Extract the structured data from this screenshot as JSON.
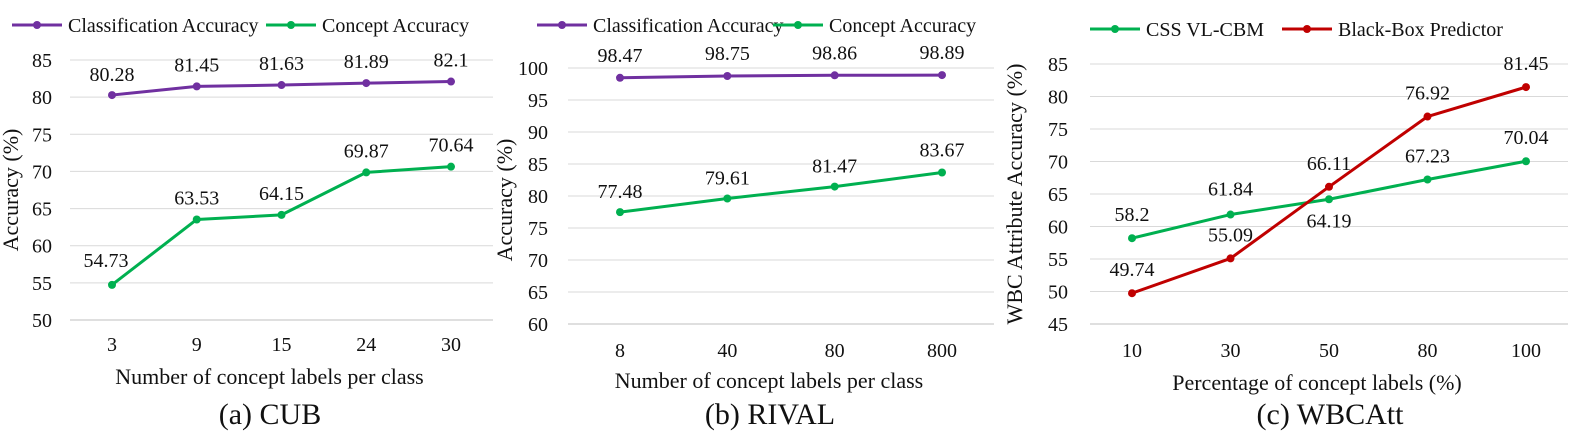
{
  "chart_data": [
    {
      "type": "line",
      "caption": "(a) CUB",
      "xlabel": "Number of concept labels per class",
      "ylabel": "Accuracy (%)",
      "categories": [
        "3",
        "9",
        "15",
        "24",
        "30"
      ],
      "ylim": [
        50,
        85
      ],
      "yticks": [
        50,
        55,
        60,
        65,
        70,
        75,
        80,
        85
      ],
      "grid": true,
      "legend_position": "top",
      "series": [
        {
          "name": "Classification Accuracy",
          "color": "#7030a0",
          "values": [
            80.28,
            81.45,
            81.63,
            81.89,
            82.1
          ],
          "labels": [
            "80.28",
            "81.45",
            "81.63",
            "81.89",
            "82.1"
          ]
        },
        {
          "name": "Concept Accuracy",
          "color": "#00b050",
          "values": [
            54.73,
            63.53,
            64.15,
            69.87,
            70.64
          ],
          "labels": [
            "54.73",
            "63.53",
            "64.15",
            "69.87",
            "70.64"
          ]
        }
      ]
    },
    {
      "type": "line",
      "caption": "(b) RIVAL",
      "xlabel": "Number of concept labels per class",
      "ylabel": "Accuracy (%)",
      "categories": [
        "8",
        "40",
        "80",
        "800"
      ],
      "ylim": [
        60,
        100
      ],
      "yticks": [
        60,
        65,
        70,
        75,
        80,
        85,
        90,
        95,
        100
      ],
      "grid": true,
      "legend_position": "top",
      "series": [
        {
          "name": "Classification Accuracy",
          "color": "#7030a0",
          "values": [
            98.47,
            98.75,
            98.86,
            98.89
          ],
          "labels": [
            "98.47",
            "98.75",
            "98.86",
            "98.89"
          ]
        },
        {
          "name": "Concept Accuracy",
          "color": "#00b050",
          "values": [
            77.48,
            79.61,
            81.47,
            83.67
          ],
          "labels": [
            "77.48",
            "79.61",
            "81.47",
            "83.67"
          ]
        }
      ]
    },
    {
      "type": "line",
      "caption": "(c) WBCAtt",
      "xlabel": "Percentage of concept labels (%)",
      "ylabel": "WBC Attribute Accuracy (%)",
      "categories": [
        "10",
        "30",
        "50",
        "80",
        "100"
      ],
      "ylim": [
        45,
        85
      ],
      "yticks": [
        45,
        50,
        55,
        60,
        65,
        70,
        75,
        80,
        85
      ],
      "grid": true,
      "legend_position": "top",
      "series": [
        {
          "name": "CSS VL-CBM",
          "color": "#00b050",
          "values": [
            58.2,
            61.84,
            64.19,
            67.23,
            70.04
          ],
          "labels": [
            "58.2",
            "61.84",
            "64.19",
            "67.23",
            "70.04"
          ]
        },
        {
          "name": "Black-Box Predictor",
          "color": "#c00000",
          "values": [
            49.74,
            55.09,
            66.11,
            76.92,
            81.45
          ],
          "labels": [
            "49.74",
            "55.09",
            "66.11",
            "76.92",
            "81.45"
          ]
        }
      ]
    }
  ]
}
